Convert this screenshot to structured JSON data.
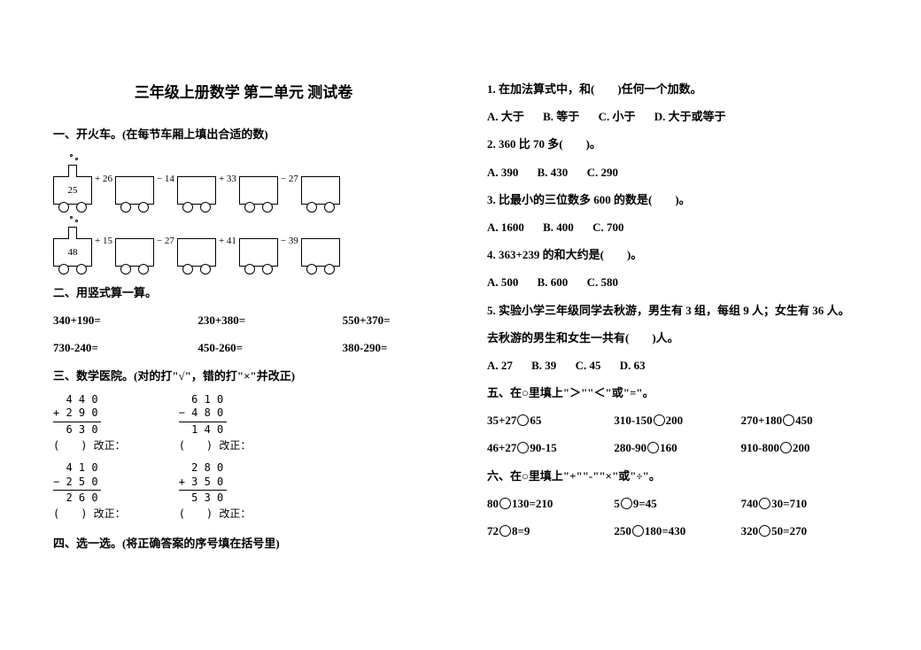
{
  "title": "三年级上册数学 第二单元 测试卷",
  "s1": {
    "heading": "一、开火车。(在每节车厢上填出合适的数)",
    "train1": {
      "start": "25",
      "ops": [
        "+ 26",
        "− 14",
        "+ 33",
        "− 27"
      ]
    },
    "train2": {
      "start": "48",
      "ops": [
        "+ 15",
        "− 27",
        "+ 41",
        "− 39"
      ]
    }
  },
  "s2": {
    "heading": "二、用竖式算一算。",
    "row1": [
      "340+190=",
      "230+380=",
      "550+370="
    ],
    "row2": [
      "730-240=",
      "450-260=",
      "380-290="
    ]
  },
  "s3": {
    "heading": "三、数学医院。(对的打\"√\"，错的打\"×\"并改正)",
    "p1": {
      "a": "  4 4 0",
      "b": "+ 2 9 0",
      "r": "  6 3 0"
    },
    "p2": {
      "a": "  6 1 0",
      "b": "− 4 8 0",
      "r": "  1 4 0"
    },
    "p3": {
      "a": "  4 1 0",
      "b": "− 2 5 0",
      "r": "  2 6 0"
    },
    "p4": {
      "a": "  2 8 0",
      "b": "+ 3 5 0",
      "r": "  5 3 0"
    },
    "fix": "(　　) 改正："
  },
  "s4": {
    "heading": "四、选一选。(将正确答案的序号填在括号里)"
  },
  "q1": {
    "stem": "1. 在加法算式中，和(　　)任何一个加数。",
    "opts": [
      "A. 大于",
      "B. 等于",
      "C. 小于",
      "D. 大于或等于"
    ]
  },
  "q2": {
    "stem": "2. 360 比 70 多(　　)。",
    "opts": [
      "A. 390",
      "B. 430",
      "C. 290"
    ]
  },
  "q3": {
    "stem": "3. 比最小的三位数多 600 的数是(　　)。",
    "opts": [
      "A. 1600",
      "B. 400",
      "C. 700"
    ]
  },
  "q4": {
    "stem": "4. 363+239 的和大约是(　　)。",
    "opts": [
      "A. 500",
      "B. 600",
      "C. 580"
    ]
  },
  "q5": {
    "stem1": "5. 实验小学三年级同学去秋游，男生有 3 组，每组 9 人；女生有 36 人。",
    "stem2": "去秋游的男生和女生一共有(　　)人。",
    "opts": [
      "A. 27",
      "B. 39",
      "C. 45",
      "D. 63"
    ]
  },
  "s5": {
    "heading": "五、在○里填上\"＞\"\"＜\"或\"=\"。",
    "row1": [
      [
        "35+27",
        "65"
      ],
      [
        "310-150",
        "200"
      ],
      [
        "270+180",
        "450"
      ]
    ],
    "row2": [
      [
        "46+27",
        "90-15"
      ],
      [
        "280-90",
        "160"
      ],
      [
        "910-800",
        "200"
      ]
    ]
  },
  "s6": {
    "heading": "六、在○里填上\"+\"\"-\"\"×\"或\"÷\"。",
    "row1": [
      [
        "80",
        "130=210"
      ],
      [
        "5",
        "9=45"
      ],
      [
        "740",
        "30=710"
      ]
    ],
    "row2": [
      [
        "72",
        "8=9"
      ],
      [
        "250",
        "180=430"
      ],
      [
        "320",
        "50=270"
      ]
    ]
  }
}
